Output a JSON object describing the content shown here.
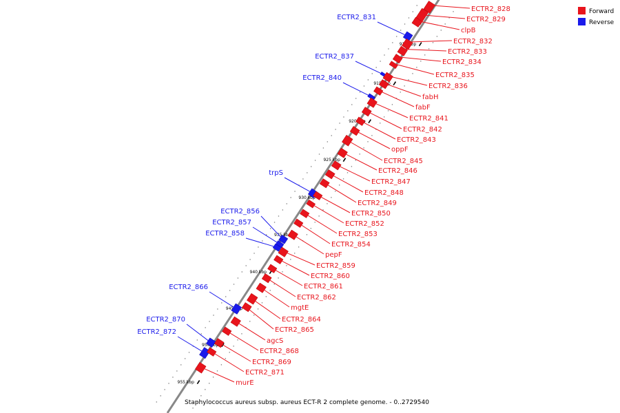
{
  "colors": {
    "forward": "#e8141c",
    "reverse": "#1a1aeb",
    "backbone": "#888888"
  },
  "legend": [
    {
      "label": "Forward",
      "strand": "forward"
    },
    {
      "label": "Reverse",
      "strand": "reverse"
    }
  ],
  "caption": "Staphylococcus aureus subsp. aureus ECT-R 2 complete genome. - 0..2729540",
  "ticks": [
    "910 kbp",
    "915 kbp",
    "920 kbp",
    "925 kbp",
    "930 kbp",
    "935 kbp",
    "940 kbp",
    "945 kbp",
    "950 kbp",
    "955 kbp"
  ],
  "forward_genes": [
    "ECTR2_828",
    "ECTR2_829",
    "clpB",
    "ECTR2_832",
    "ECTR2_833",
    "ECTR2_834",
    "ECTR2_835",
    "ECTR2_836",
    "fabH",
    "fabF",
    "ECTR2_841",
    "ECTR2_842",
    "ECTR2_843",
    "oppF",
    "ECTR2_845",
    "ECTR2_846",
    "ECTR2_847",
    "ECTR2_848",
    "ECTR2_849",
    "ECTR2_850",
    "ECTR2_852",
    "ECTR2_853",
    "ECTR2_854",
    "pepF",
    "ECTR2_859",
    "ECTR2_860",
    "ECTR2_861",
    "ECTR2_862",
    "mgtE",
    "ECTR2_864",
    "ECTR2_865",
    "agcS",
    "ECTR2_868",
    "ECTR2_869",
    "ECTR2_871",
    "murE"
  ],
  "reverse_genes": [
    "ECTR2_831",
    "ECTR2_837",
    "ECTR2_840",
    "trpS",
    "ECTR2_856",
    "ECTR2_857",
    "ECTR2_858",
    "ECTR2_866",
    "ECTR2_870",
    "ECTR2_872"
  ]
}
